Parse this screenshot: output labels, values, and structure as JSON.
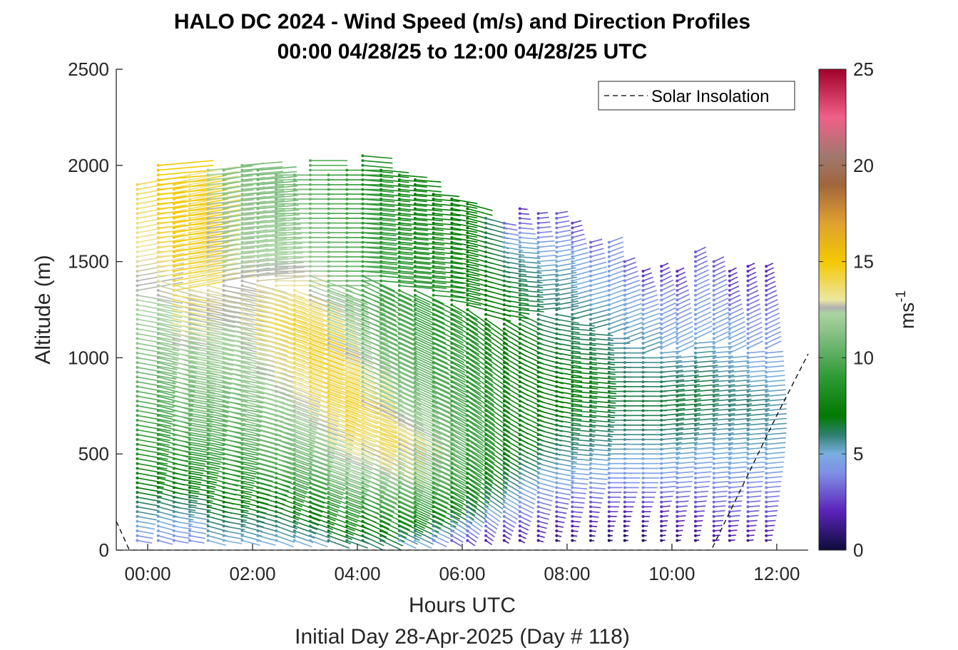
{
  "chart_data": {
    "type": "quiver",
    "title_line1": "HALO DC 2024 - Wind Speed (m/s) and Direction Profiles",
    "title_line2": "00:00 04/28/25 to 12:00 04/28/25  UTC",
    "xlabel": "Hours UTC",
    "xlabel2": "Initial Day 28-Apr-2025 (Day # 118)",
    "ylabel": "Altitude (m)",
    "colorbar_label": "ms",
    "colorbar_label_sup": "-1",
    "x_ticks": [
      "00:00",
      "02:00",
      "04:00",
      "06:00",
      "08:00",
      "10:00",
      "12:00"
    ],
    "y_ticks": [
      "0",
      "500",
      "1000",
      "1500",
      "2000",
      "2500"
    ],
    "colorbar_ticks": [
      "0",
      "5",
      "10",
      "15",
      "20",
      "25"
    ],
    "xlim_hours": [
      -0.6,
      12.6
    ],
    "ylim": [
      0,
      2500
    ],
    "clim": [
      0,
      25
    ],
    "legend": {
      "entries": [
        "Solar Insolation"
      ],
      "placement": "top-right"
    },
    "colormap_stops": [
      {
        "v": 0,
        "color": "#0d0d3a"
      },
      {
        "v": 2,
        "color": "#5a22b8"
      },
      {
        "v": 4,
        "color": "#7f8fe6"
      },
      {
        "v": 5,
        "color": "#7aaee0"
      },
      {
        "v": 6,
        "color": "#2e7f6e"
      },
      {
        "v": 7,
        "color": "#007a00"
      },
      {
        "v": 9,
        "color": "#2f9a36"
      },
      {
        "v": 11,
        "color": "#7cbc7c"
      },
      {
        "v": 12.3,
        "color": "#aad4a2"
      },
      {
        "v": 12.6,
        "color": "#b0b0b0"
      },
      {
        "v": 13,
        "color": "#ece6a2"
      },
      {
        "v": 15,
        "color": "#f4c800"
      },
      {
        "v": 17,
        "color": "#e0a030"
      },
      {
        "v": 19,
        "color": "#a0663c"
      },
      {
        "v": 20.5,
        "color": "#a0786e"
      },
      {
        "v": 22.5,
        "color": "#f06088"
      },
      {
        "v": 25,
        "color": "#a0002a"
      }
    ],
    "solar_insolation": {
      "style": "dashed",
      "color": "#000000",
      "x_hours": [
        -0.6,
        -0.35,
        10.75,
        11.5,
        12.0,
        12.6
      ],
      "y": [
        150,
        0,
        0,
        420,
        700,
        1020
      ]
    },
    "profiles": [
      {
        "t": -0.2,
        "top": 1900,
        "dir": 80,
        "spd": [
          4,
          6,
          8,
          9,
          10,
          11,
          12,
          12.5,
          13,
          13.5,
          14
        ]
      },
      {
        "t": 0.2,
        "top": 2000,
        "dir": 75,
        "spd": [
          4,
          6,
          8,
          9,
          10,
          11,
          12,
          13,
          14,
          15,
          15
        ]
      },
      {
        "t": 0.5,
        "top": 1900,
        "dir": 80,
        "spd": [
          4,
          6,
          8,
          10,
          11,
          12,
          13,
          14,
          15,
          15,
          14.5
        ]
      },
      {
        "t": 0.8,
        "top": 1960,
        "dir": 80,
        "spd": [
          4,
          6,
          8,
          10,
          11,
          12,
          12.5,
          13,
          13.5,
          14,
          13
        ]
      },
      {
        "t": 1.15,
        "top": 1980,
        "dir": 75,
        "spd": [
          5,
          7,
          9,
          10,
          11,
          12,
          12.5,
          13,
          12.6,
          12.5,
          12
        ]
      },
      {
        "t": 1.45,
        "top": 1980,
        "dir": 80,
        "spd": [
          5,
          7,
          9,
          10,
          11,
          12,
          12.5,
          12.6,
          12,
          11.5,
          11
        ]
      },
      {
        "t": 1.8,
        "top": 2000,
        "dir": 75,
        "spd": [
          5,
          7,
          9,
          11,
          12,
          12.5,
          13,
          12.6,
          12,
          11.5,
          11
        ]
      },
      {
        "t": 2.1,
        "top": 1980,
        "dir": 75,
        "spd": [
          5,
          7,
          10,
          11,
          12,
          13,
          14,
          12.8,
          12,
          11,
          10.5
        ]
      },
      {
        "t": 2.45,
        "top": 1960,
        "dir": 70,
        "spd": [
          5,
          7,
          10,
          11,
          12.5,
          13.5,
          14,
          13,
          12,
          11,
          11
        ]
      },
      {
        "t": 2.8,
        "top": 1960,
        "dir": 70,
        "spd": [
          5,
          8,
          10,
          12,
          13,
          14,
          14.5,
          13,
          12,
          11,
          10.5
        ]
      },
      {
        "t": 3.1,
        "top": 2040,
        "dir": 70,
        "spd": [
          5,
          8,
          11,
          12.5,
          14,
          14.5,
          13,
          12,
          11,
          10.5,
          10
        ]
      },
      {
        "t": 3.45,
        "top": 1960,
        "dir": 70,
        "spd": [
          6,
          9,
          12,
          13.5,
          14.5,
          13,
          12,
          11,
          10.5,
          10,
          9.5
        ]
      },
      {
        "t": 3.8,
        "top": 1990,
        "dir": 70,
        "spd": [
          6,
          9,
          12,
          14.5,
          14,
          12.6,
          11.5,
          10.5,
          10,
          9.5,
          9
        ]
      },
      {
        "t": 4.1,
        "top": 2070,
        "dir": 65,
        "spd": [
          6,
          9,
          12,
          13.5,
          12,
          11,
          10,
          9.5,
          9,
          8.5,
          8
        ]
      },
      {
        "t": 4.45,
        "top": 1980,
        "dir": 65,
        "spd": [
          6,
          10,
          13,
          13.5,
          12,
          11,
          10,
          9,
          8.5,
          8,
          7.5
        ]
      },
      {
        "t": 4.8,
        "top": 1960,
        "dir": 65,
        "spd": [
          5,
          9,
          12,
          13,
          11.5,
          10.5,
          10,
          9,
          8,
          7.5,
          7.5
        ]
      },
      {
        "t": 5.1,
        "top": 1940,
        "dir": 65,
        "spd": [
          5,
          9,
          11,
          12,
          11,
          10,
          9,
          8.5,
          8,
          7.5,
          7
        ]
      },
      {
        "t": 5.45,
        "top": 1860,
        "dir": 65,
        "spd": [
          4,
          8,
          10,
          11,
          10,
          9.5,
          9,
          8.5,
          8,
          7.5,
          7
        ]
      },
      {
        "t": 5.8,
        "top": 1830,
        "dir": 60,
        "spd": [
          3,
          7,
          9,
          10,
          9.5,
          9,
          8.5,
          8,
          7.5,
          7,
          7
        ]
      },
      {
        "t": 6.1,
        "top": 1800,
        "dir": 55,
        "spd": [
          2.5,
          6,
          8,
          9,
          9,
          8.5,
          8,
          7.5,
          7,
          7,
          7
        ]
      },
      {
        "t": 6.45,
        "top": 1740,
        "dir": 55,
        "spd": [
          2,
          5,
          7,
          8,
          8,
          8,
          7.5,
          7,
          7,
          6.5,
          6
        ]
      },
      {
        "t": 6.8,
        "top": 1720,
        "dir": 60,
        "spd": [
          1.5,
          4.5,
          6,
          7.5,
          7.5,
          7.5,
          7,
          7,
          6.5,
          5.5,
          3
        ]
      },
      {
        "t": 7.1,
        "top": 1780,
        "dir": 65,
        "spd": [
          1.5,
          4,
          5.5,
          7,
          7.5,
          7,
          7,
          6.5,
          6,
          5,
          2
        ]
      },
      {
        "t": 7.45,
        "top": 1760,
        "dir": 75,
        "spd": [
          1.5,
          3.5,
          5,
          6.5,
          7,
          7,
          6.5,
          6,
          5.5,
          4.5,
          2.5
        ]
      },
      {
        "t": 7.8,
        "top": 1760,
        "dir": 80,
        "spd": [
          1,
          3,
          5,
          6,
          7,
          7,
          6.5,
          6,
          5.5,
          4.5,
          3
        ]
      },
      {
        "t": 8.1,
        "top": 1700,
        "dir": 85,
        "spd": [
          1,
          3,
          4.5,
          6,
          6.5,
          7,
          6.5,
          6,
          5,
          4.5,
          2.5
        ]
      },
      {
        "t": 8.45,
        "top": 1620,
        "dir": 85,
        "spd": [
          1,
          2.5,
          4.5,
          5.5,
          6.5,
          7,
          6.5,
          6,
          5,
          4.5,
          3
        ]
      },
      {
        "t": 8.8,
        "top": 1600,
        "dir": 90,
        "spd": [
          0.5,
          2.5,
          4,
          5.5,
          6,
          6.5,
          6,
          5.5,
          5,
          4.5,
          4
        ]
      },
      {
        "t": 9.1,
        "top": 1500,
        "dir": 90,
        "spd": [
          0.5,
          2,
          4,
          5,
          6,
          6.5,
          6,
          5.5,
          5,
          4.5,
          3
        ]
      },
      {
        "t": 9.45,
        "top": 1460,
        "dir": 90,
        "spd": [
          0.5,
          2,
          4,
          5,
          6,
          6.5,
          6,
          5.5,
          5,
          4,
          2
        ]
      },
      {
        "t": 9.8,
        "top": 1480,
        "dir": 95,
        "spd": [
          1,
          2,
          4,
          5,
          6,
          6.5,
          6,
          5,
          4.5,
          4,
          2
        ]
      },
      {
        "t": 10.1,
        "top": 1460,
        "dir": 95,
        "spd": [
          1,
          2.5,
          4,
          5,
          6,
          6.5,
          6,
          5,
          4.5,
          3.5,
          2
        ]
      },
      {
        "t": 10.45,
        "top": 1560,
        "dir": 95,
        "spd": [
          1,
          2.5,
          4,
          5,
          6,
          6.5,
          6,
          5,
          4.5,
          4,
          3
        ]
      },
      {
        "t": 10.8,
        "top": 1500,
        "dir": 95,
        "spd": [
          1.5,
          3,
          4,
          5,
          5.5,
          6,
          5.5,
          5,
          4.5,
          4,
          3
        ]
      },
      {
        "t": 11.1,
        "top": 1460,
        "dir": 95,
        "spd": [
          1.5,
          3,
          4,
          5,
          5.5,
          6,
          5.5,
          5,
          4.5,
          3,
          2
        ]
      },
      {
        "t": 11.45,
        "top": 1480,
        "dir": 95,
        "spd": [
          1.5,
          3,
          4,
          5,
          5.5,
          6,
          5,
          4.5,
          4,
          3,
          2
        ]
      },
      {
        "t": 11.8,
        "top": 1480,
        "dir": 95,
        "spd": [
          1.5,
          3,
          4,
          5,
          5.5,
          5.5,
          5,
          4.5,
          4,
          3,
          2
        ]
      }
    ]
  }
}
